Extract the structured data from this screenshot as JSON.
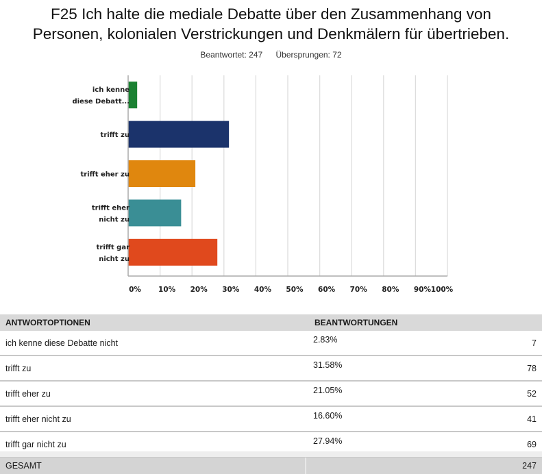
{
  "question": {
    "title_line1": "F25 Ich halte die mediale Debatte über den Zusammenhang von",
    "title_line2": "Personen, kolonialen Verstrickungen und Denkmälern für übertrieben.",
    "answered_label": "Beantwortet: 247",
    "skipped_label": "Übersprungen: 72"
  },
  "chart_data": {
    "type": "bar",
    "orientation": "horizontal",
    "title": "F25 Ich halte die mediale Debatte über den Zusammenhang von Personen, kolonialen Verstrickungen und Denkmälern für übertrieben.",
    "categories": [
      "ich kenne diese Debatte nicht",
      "trifft zu",
      "trifft eher zu",
      "trifft eher nicht zu",
      "trifft gar nicht zu"
    ],
    "category_labels_display": [
      [
        "ich kenne",
        "diese Debatt..."
      ],
      [
        "trifft zu"
      ],
      [
        "trifft eher zu"
      ],
      [
        "trifft eher",
        "nicht zu"
      ],
      [
        "trifft gar",
        "nicht zu"
      ]
    ],
    "values": [
      2.83,
      31.58,
      21.05,
      16.6,
      27.94
    ],
    "colors": [
      "#1b8132",
      "#1b336b",
      "#e0870e",
      "#3a8e95",
      "#e0491d"
    ],
    "xlabel": "",
    "ylabel": "",
    "xlim": [
      0,
      100
    ],
    "x_ticks": [
      "0%",
      "10%",
      "20%",
      "30%",
      "40%",
      "50%",
      "60%",
      "70%",
      "80%",
      "90%",
      "100%"
    ],
    "grid": true,
    "legend": "none"
  },
  "table": {
    "headers": [
      "ANTWORTOPTIONEN",
      "BEANTWORTUNGEN"
    ],
    "rows": [
      {
        "option": "ich kenne diese Debatte nicht",
        "percent": "2.83%",
        "count": "7"
      },
      {
        "option": "trifft zu",
        "percent": "31.58%",
        "count": "78"
      },
      {
        "option": "trifft eher zu",
        "percent": "21.05%",
        "count": "52"
      },
      {
        "option": "trifft eher nicht zu",
        "percent": "16.60%",
        "count": "41"
      },
      {
        "option": "trifft gar nicht zu",
        "percent": "27.94%",
        "count": "69"
      }
    ],
    "total_label": "GESAMT",
    "total_count": "247"
  }
}
